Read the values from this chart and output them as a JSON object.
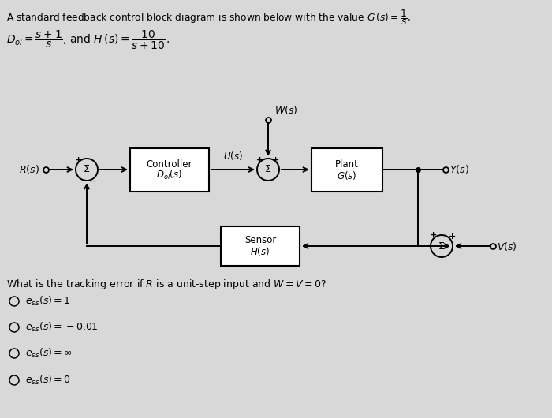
{
  "bg_color": "#d8d8d8",
  "line1": "A standard feedback control block diagram is shown below with the value $G\\,(s) = \\dfrac{1}{s}$,",
  "line2_left": "$D_{ol} = \\dfrac{s+1}{s}$, and $H\\,(s) = \\dfrac{10}{s+10}$.",
  "question": "What is the tracking error if $R$ is a unit-step input and $W = V = 0$?",
  "options": [
    "$e_{ss}(s) = 1$",
    "$e_{ss}(s) = -0.01$",
    "$e_{ss}(s) = \\infty$",
    "$e_{ss}(s) = 0$"
  ]
}
